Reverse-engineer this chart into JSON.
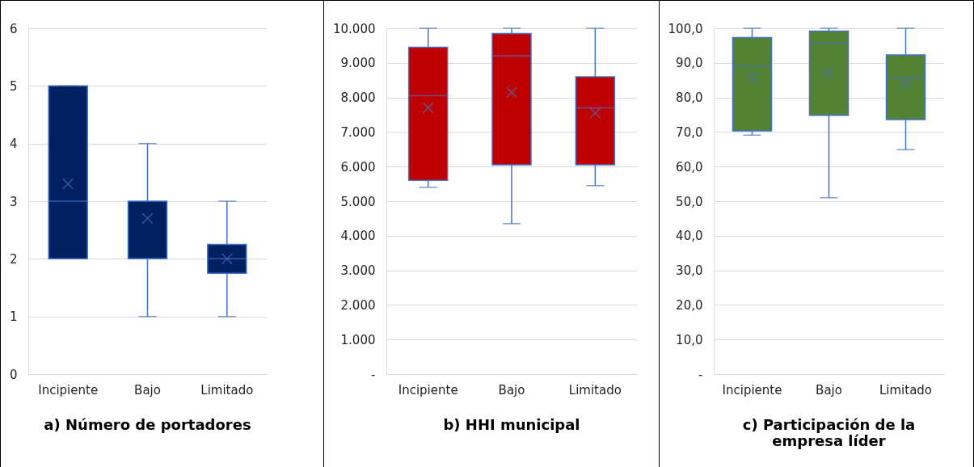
{
  "chart_data": [
    {
      "type": "box",
      "title": "a)   Número de portadores",
      "categories": [
        "Incipiente",
        "Bajo",
        "Limitado"
      ],
      "color": "#002060",
      "marker": "cross",
      "grid": "y",
      "ylim": [
        0,
        6
      ],
      "yticks": [
        0,
        1,
        2,
        3,
        4,
        5,
        6
      ],
      "boxes": [
        {
          "low": 2,
          "q1": 2,
          "median": 3,
          "q3": 5,
          "high": 5,
          "mean": 3.3
        },
        {
          "low": 1,
          "q1": 2,
          "median": 2,
          "q3": 3,
          "high": 4,
          "mean": 2.7
        },
        {
          "low": 1,
          "q1": 1.75,
          "median": 2,
          "q3": 2.25,
          "high": 3,
          "mean": 2
        }
      ]
    },
    {
      "type": "box",
      "title": "b)   HHI municipal",
      "categories": [
        "Incipiente",
        "Bajo",
        "Limitado"
      ],
      "color": "#c00000",
      "marker": "cross",
      "grid": "y",
      "ylim": [
        0,
        10000
      ],
      "yticks": [
        {
          "value": 0,
          "label": "-"
        },
        {
          "value": 1000,
          "label": "1.000"
        },
        {
          "value": 2000,
          "label": "2.000"
        },
        {
          "value": 3000,
          "label": "3.000"
        },
        {
          "value": 4000,
          "label": "4.000"
        },
        {
          "value": 5000,
          "label": "5.000"
        },
        {
          "value": 6000,
          "label": "6.000"
        },
        {
          "value": 7000,
          "label": "7.000"
        },
        {
          "value": 8000,
          "label": "8.000"
        },
        {
          "value": 9000,
          "label": "9.000"
        },
        {
          "value": 10000,
          "label": "10.000"
        }
      ],
      "boxes": [
        {
          "low": 5400,
          "q1": 5600,
          "median": 8050,
          "q3": 9450,
          "high": 10000,
          "mean": 7700
        },
        {
          "low": 4350,
          "q1": 6050,
          "median": 9200,
          "q3": 9850,
          "high": 10000,
          "mean": 8150
        },
        {
          "low": 5450,
          "q1": 6050,
          "median": 7700,
          "q3": 8600,
          "high": 10000,
          "mean": 7550
        }
      ]
    },
    {
      "type": "box",
      "title": "c)   Participación de la empresa líder",
      "categories": [
        "Incipiente",
        "Bajo",
        "Limitado"
      ],
      "color": "#548235",
      "marker": "cross",
      "grid": "y",
      "ylim": [
        0,
        100
      ],
      "yticks": [
        {
          "value": 0,
          "label": "-"
        },
        {
          "value": 10,
          "label": "10,0"
        },
        {
          "value": 20,
          "label": "20,0"
        },
        {
          "value": 30,
          "label": "30,0"
        },
        {
          "value": 40,
          "label": "40,0"
        },
        {
          "value": 50,
          "label": "50,0"
        },
        {
          "value": 60,
          "label": "60,0"
        },
        {
          "value": 70,
          "label": "70,0"
        },
        {
          "value": 80,
          "label": "80,0"
        },
        {
          "value": 90,
          "label": "90,0"
        },
        {
          "value": 100,
          "label": "100,0"
        }
      ],
      "boxes": [
        {
          "low": 69.1,
          "q1": 70.3,
          "median": 89,
          "q3": 97.3,
          "high": 100,
          "mean": 85.8
        },
        {
          "low": 51,
          "q1": 74.8,
          "median": 95.8,
          "q3": 99.2,
          "high": 100,
          "mean": 87.1
        },
        {
          "low": 64.9,
          "q1": 73.6,
          "median": 85.7,
          "q3": 92.3,
          "high": 100,
          "mean": 84.1
        }
      ]
    }
  ]
}
